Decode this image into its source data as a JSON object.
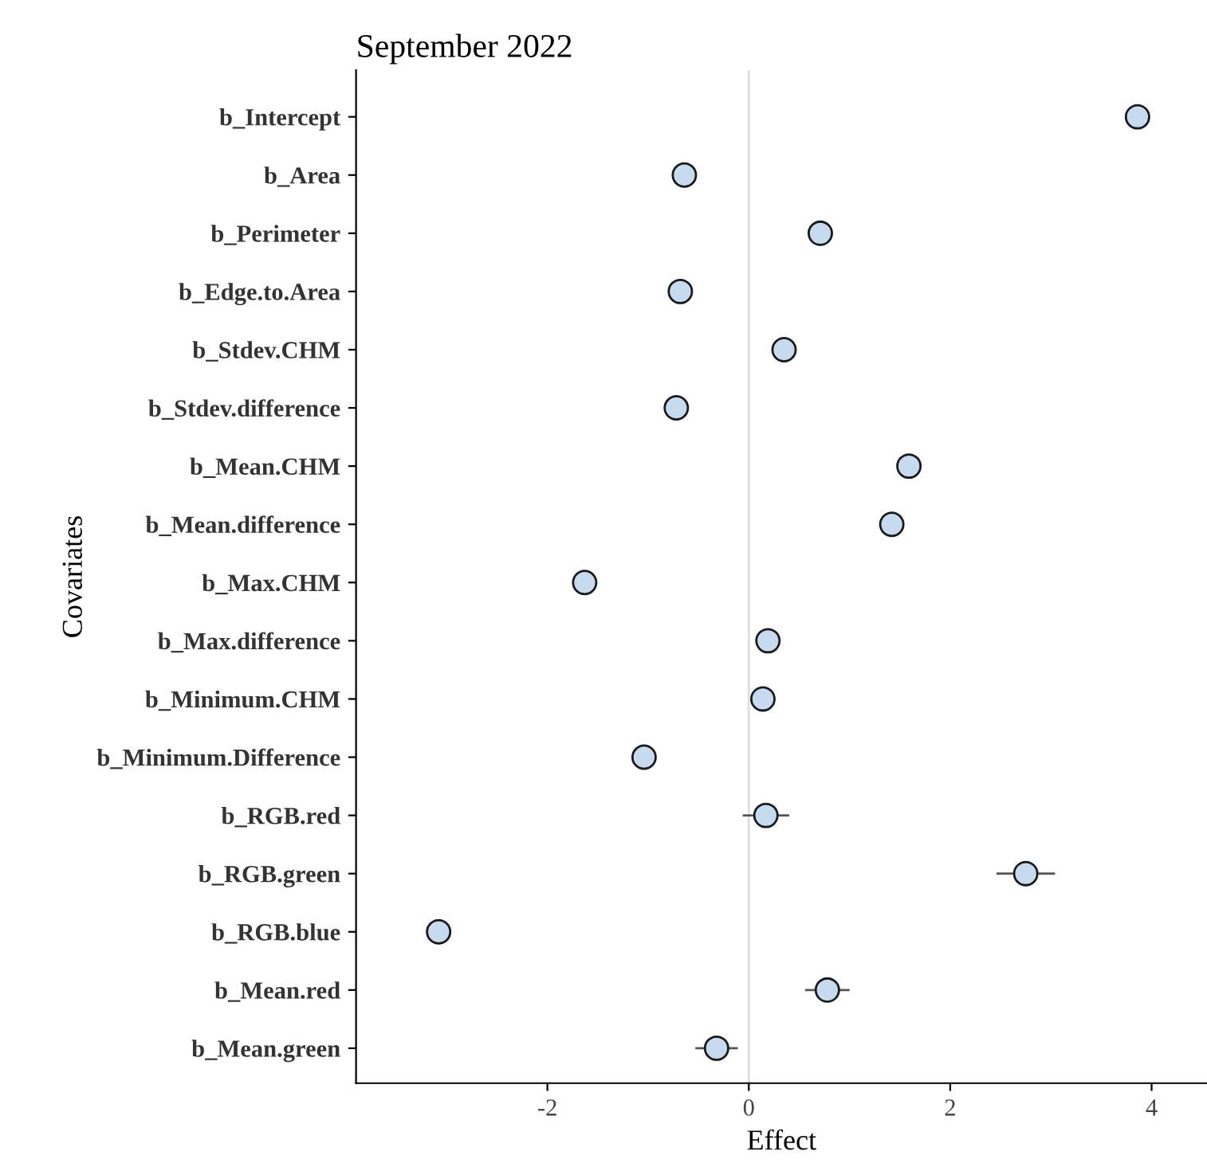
{
  "chart_data": {
    "type": "scatter",
    "orientation": "horizontal",
    "title": "September 2022",
    "xlabel": "Effect",
    "ylabel": "Covariates",
    "categories": [
      "b_Intercept",
      "b_Area",
      "b_Perimeter",
      "b_Edge.to.Area",
      "b_Stdev.CHM",
      "b_Stdev.difference",
      "b_Mean.CHM",
      "b_Mean.difference",
      "b_Max.CHM",
      "b_Max.difference",
      "b_Minimum.CHM",
      "b_Minimum.Difference",
      "b_RGB.red",
      "b_RGB.green",
      "b_RGB.blue",
      "b_Mean.red",
      "b_Mean.green"
    ],
    "series": [
      {
        "color": "#c6dbef",
        "values": [
          3.86,
          -0.64,
          0.71,
          -0.68,
          0.35,
          -0.72,
          1.59,
          1.42,
          -1.63,
          0.19,
          0.14,
          -1.04,
          0.17,
          2.75,
          -3.08,
          0.78,
          -0.32
        ],
        "errors": [
          null,
          null,
          null,
          null,
          null,
          null,
          null,
          null,
          null,
          null,
          null,
          null,
          0.22,
          0.28,
          null,
          0.21,
          0.2
        ]
      }
    ],
    "xlim": [
      -3.9,
      4.55
    ],
    "xticks": [
      -2,
      0,
      2,
      4
    ],
    "marker": "circle",
    "grid": false,
    "legend": false,
    "ref_lines": [
      {
        "axis": "x",
        "value": 0,
        "color": "#dddddd"
      }
    ]
  }
}
